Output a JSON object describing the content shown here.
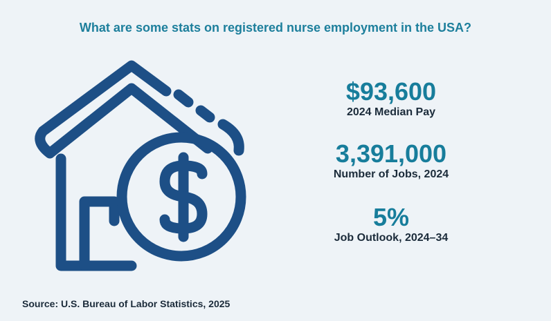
{
  "title": "What are some stats on registered nurse employment in the USA?",
  "stats": [
    {
      "value": "$93,600",
      "label": "2024 Median Pay"
    },
    {
      "value": "3,391,000",
      "label": "Number of Jobs, 2024"
    },
    {
      "value": "5%",
      "label": "Job Outlook, 2024–34"
    }
  ],
  "source": "Source:  U.S. Bureau of Labor Statistics, 2025"
}
